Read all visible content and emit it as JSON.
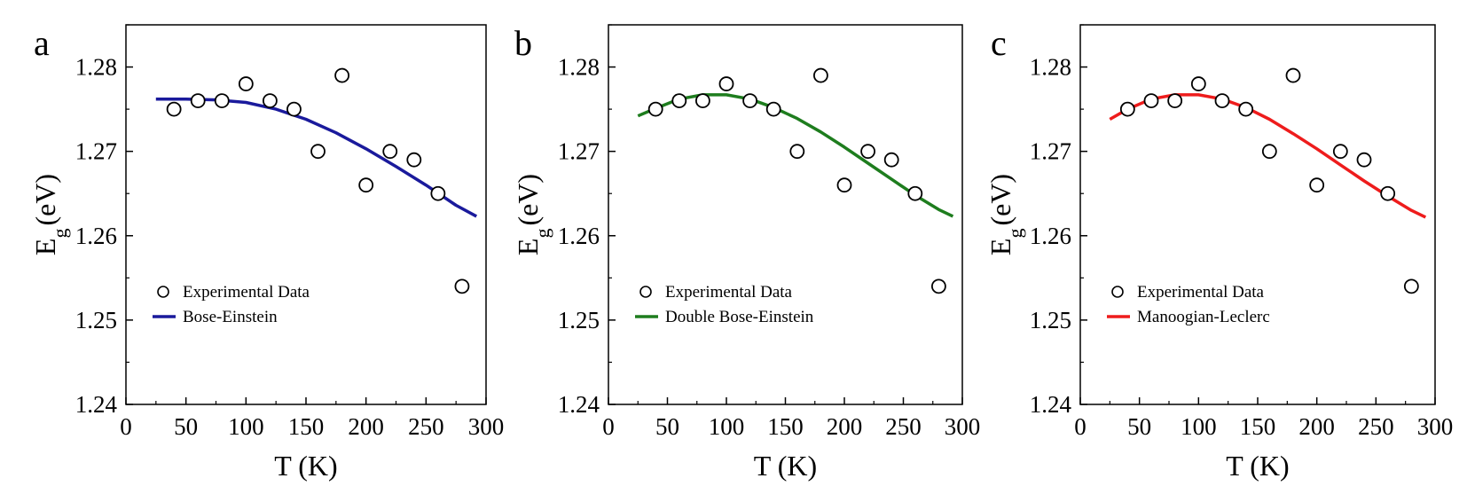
{
  "figure": {
    "panels": [
      {
        "id": "a",
        "letter": "a"
      },
      {
        "id": "b",
        "letter": "b"
      },
      {
        "id": "c",
        "letter": "c"
      }
    ]
  },
  "chart_data": [
    {
      "type": "scatter",
      "panel": "a",
      "xlabel": "T (K)",
      "ylabel": "E_g (eV)",
      "ylabel_main": "E",
      "ylabel_sub": "g",
      "ylabel_unit": "(eV)",
      "xlim": [
        0,
        300
      ],
      "ylim": [
        1.24,
        1.285
      ],
      "xticks": [
        "0",
        "50",
        "100",
        "150",
        "200",
        "250",
        "300"
      ],
      "yticks": [
        "1.24",
        "1.25",
        "1.26",
        "1.27",
        "1.28"
      ],
      "series": [
        {
          "name": "Experimental Data",
          "kind": "scatter",
          "x": [
            40,
            60,
            80,
            100,
            120,
            140,
            160,
            180,
            200,
            220,
            240,
            260,
            280
          ],
          "y": [
            1.275,
            1.276,
            1.276,
            1.278,
            1.276,
            1.275,
            1.27,
            1.279,
            1.266,
            1.27,
            1.269,
            1.265,
            1.254
          ]
        },
        {
          "name": "Bose-Einstein",
          "kind": "line",
          "color": "#1a1a9c",
          "x": [
            25,
            50,
            75,
            100,
            125,
            150,
            175,
            200,
            225,
            250,
            275,
            292
          ],
          "y": [
            1.2762,
            1.2762,
            1.2761,
            1.2758,
            1.275,
            1.2738,
            1.2722,
            1.2703,
            1.2682,
            1.266,
            1.2636,
            1.2623
          ]
        }
      ]
    },
    {
      "type": "scatter",
      "panel": "b",
      "xlabel": "T (K)",
      "ylabel": "E_g (eV)",
      "ylabel_main": "E",
      "ylabel_sub": "g",
      "ylabel_unit": "(eV)",
      "xlim": [
        0,
        300
      ],
      "ylim": [
        1.24,
        1.285
      ],
      "xticks": [
        "0",
        "50",
        "100",
        "150",
        "200",
        "250",
        "300"
      ],
      "yticks": [
        "1.24",
        "1.25",
        "1.26",
        "1.27",
        "1.28"
      ],
      "series": [
        {
          "name": "Experimental Data",
          "kind": "scatter",
          "x": [
            40,
            60,
            80,
            100,
            120,
            140,
            160,
            180,
            200,
            220,
            240,
            260,
            280
          ],
          "y": [
            1.275,
            1.276,
            1.276,
            1.278,
            1.276,
            1.275,
            1.27,
            1.279,
            1.266,
            1.27,
            1.269,
            1.265,
            1.254
          ]
        },
        {
          "name": "Double Bose-Einstein",
          "kind": "line",
          "color": "#1e7d1e",
          "x": [
            25,
            40,
            60,
            80,
            100,
            120,
            140,
            160,
            180,
            200,
            220,
            240,
            260,
            280,
            292
          ],
          "y": [
            1.2742,
            1.2751,
            1.2762,
            1.2767,
            1.2767,
            1.2762,
            1.2752,
            1.2739,
            1.2723,
            1.2705,
            1.2686,
            1.2667,
            1.2648,
            1.2631,
            1.2623
          ]
        }
      ]
    },
    {
      "type": "scatter",
      "panel": "c",
      "xlabel": "T (K)",
      "ylabel": "E_g (eV)",
      "ylabel_main": "E",
      "ylabel_sub": "g",
      "ylabel_unit": "(eV)",
      "xlim": [
        0,
        300
      ],
      "ylim": [
        1.24,
        1.285
      ],
      "xticks": [
        "0",
        "50",
        "100",
        "150",
        "200",
        "250",
        "300"
      ],
      "yticks": [
        "1.24",
        "1.25",
        "1.26",
        "1.27",
        "1.28"
      ],
      "series": [
        {
          "name": "Experimental Data",
          "kind": "scatter",
          "x": [
            40,
            60,
            80,
            100,
            120,
            140,
            160,
            180,
            200,
            220,
            240,
            260,
            280
          ],
          "y": [
            1.275,
            1.276,
            1.276,
            1.278,
            1.276,
            1.275,
            1.27,
            1.279,
            1.266,
            1.27,
            1.269,
            1.265,
            1.254
          ]
        },
        {
          "name": "Manoogian-Leclerc",
          "kind": "line",
          "color": "#ee1c1c",
          "x": [
            25,
            40,
            60,
            80,
            100,
            120,
            140,
            160,
            180,
            200,
            220,
            240,
            260,
            280,
            292
          ],
          "y": [
            1.2738,
            1.275,
            1.2762,
            1.2767,
            1.2767,
            1.2762,
            1.2752,
            1.2738,
            1.2721,
            1.2703,
            1.2684,
            1.2665,
            1.2647,
            1.263,
            1.2622
          ]
        }
      ]
    }
  ]
}
